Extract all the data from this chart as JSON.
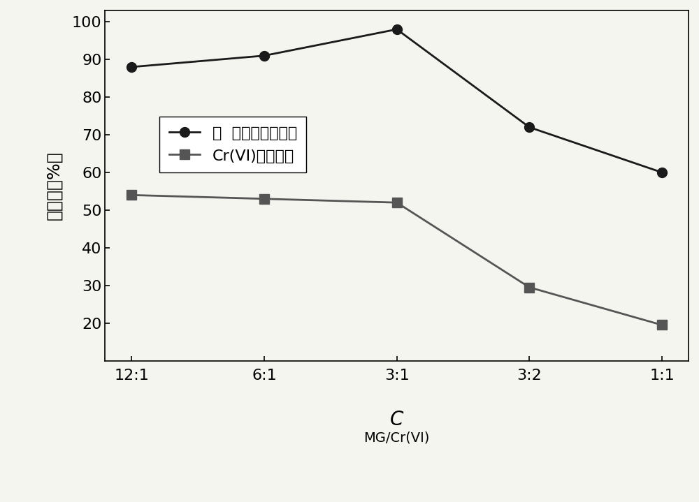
{
  "x_labels": [
    "12:1",
    "6:1",
    "3:1",
    "3:2",
    "1:1"
  ],
  "x_positions": [
    0,
    1,
    2,
    3,
    4
  ],
  "series1_values": [
    88,
    91,
    98,
    72,
    60
  ],
  "series2_values": [
    54,
    53,
    52,
    29.5,
    19.5
  ],
  "series1_label": "孔  雀石绿的去除率",
  "series2_label": "Cr(VI)的去除率",
  "ylabel": "去除率（%）",
  "xlabel_main": "C",
  "xlabel_sub": "MG/Cr(VI)",
  "ylim": [
    10,
    103
  ],
  "yticks": [
    20,
    30,
    40,
    50,
    60,
    70,
    80,
    90,
    100
  ],
  "series1_color": "#1a1a1a",
  "series2_color": "#555555",
  "background_color": "#f5f5f0",
  "line_width": 2.0,
  "marker_size": 10
}
